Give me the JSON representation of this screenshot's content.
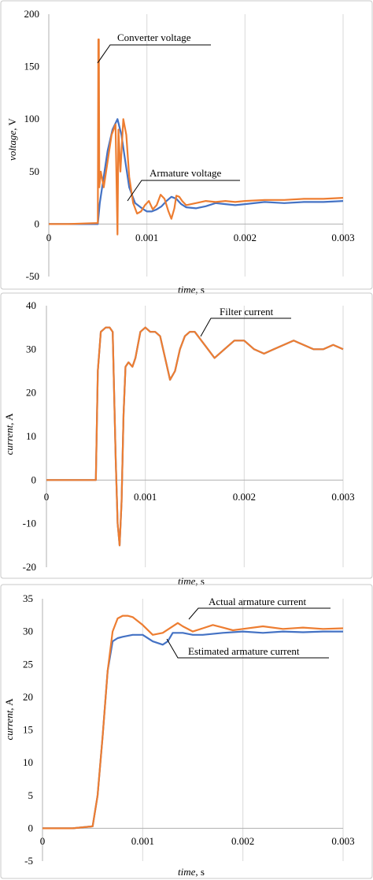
{
  "chart_data": [
    {
      "type": "line",
      "title": "",
      "xlabel": "time",
      "xunit": ", s",
      "ylabel": "voltage",
      "yunit": ", V",
      "xlim": [
        0,
        0.003
      ],
      "ylim": [
        -50,
        200
      ],
      "xticks": [
        0,
        0.001,
        0.002,
        0.003
      ],
      "xtick_labels": [
        "0",
        "0.001",
        "0.002",
        "0.003"
      ],
      "yticks": [
        -50,
        0,
        50,
        100,
        150,
        200
      ],
      "ytick_labels": [
        "-50",
        "0",
        "50",
        "100",
        "150",
        "200"
      ],
      "grid": "vertical",
      "series": [
        {
          "color": "#4472C4",
          "x": [
            0,
            0.0002,
            0.0005,
            0.00052,
            0.0006,
            0.00065,
            0.0007,
            0.00074,
            0.00078,
            0.00082,
            0.00088,
            0.00095,
            0.001,
            0.00105,
            0.0011,
            0.00115,
            0.0012,
            0.00125,
            0.0013,
            0.00135,
            0.0014,
            0.0015,
            0.0016,
            0.0017,
            0.0018,
            0.0019,
            0.002,
            0.0022,
            0.0024,
            0.0026,
            0.0028,
            0.003
          ],
          "y": [
            0,
            0,
            0,
            20,
            70,
            90,
            100,
            85,
            60,
            35,
            20,
            15,
            12,
            12,
            14,
            17,
            22,
            26,
            24,
            19,
            16,
            15,
            17,
            20,
            19,
            18,
            19,
            21,
            20,
            21,
            21,
            22
          ]
        },
        {
          "color": "#ED7D31",
          "x": [
            0,
            0.0002,
            0.0005,
            0.000505,
            0.00051,
            0.000515,
            0.00053,
            0.00056,
            0.0006,
            0.00064,
            0.00068,
            0.0007,
            0.00071,
            0.00073,
            0.00076,
            0.00079,
            0.00082,
            0.00086,
            0.0009,
            0.00094,
            0.00098,
            0.00102,
            0.00106,
            0.0011,
            0.00114,
            0.00118,
            0.00122,
            0.00125,
            0.00128,
            0.0013,
            0.00133,
            0.00136,
            0.0014,
            0.0015,
            0.0016,
            0.0017,
            0.0018,
            0.0019,
            0.002,
            0.0022,
            0.0024,
            0.0026,
            0.0028,
            0.003
          ],
          "y": [
            0,
            0,
            1,
            176,
            176,
            35,
            50,
            35,
            60,
            85,
            95,
            -10,
            90,
            50,
            100,
            85,
            45,
            20,
            10,
            12,
            18,
            22,
            14,
            18,
            28,
            24,
            12,
            5,
            15,
            27,
            26,
            22,
            18,
            20,
            22,
            21,
            22,
            21,
            22,
            23,
            23,
            24,
            24,
            25
          ]
        }
      ],
      "annotations": [
        {
          "text": "Converter voltage"
        },
        {
          "text": "Armature voltage"
        }
      ]
    },
    {
      "type": "line",
      "title": "",
      "xlabel": "time",
      "xunit": ", s",
      "ylabel": "current",
      "yunit": ", A",
      "xlim": [
        0,
        0.003
      ],
      "ylim": [
        -20,
        40
      ],
      "xticks": [
        0,
        0.001,
        0.002,
        0.003
      ],
      "xtick_labels": [
        "0",
        "0.001",
        "0.002",
        "0.003"
      ],
      "yticks": [
        -20,
        -10,
        0,
        10,
        20,
        30,
        40
      ],
      "ytick_labels": [
        "-20",
        "-10",
        "0",
        "10",
        "20",
        "30",
        "40"
      ],
      "grid": "vertical",
      "series": [
        {
          "color": "#4472C4",
          "x": [
            0,
            0.0003,
            0.0005,
            0.00052,
            0.00055,
            0.0006,
            0.00064,
            0.00067,
            0.0007,
            0.00072,
            0.00074,
            0.00076,
            0.00078,
            0.0008,
            0.00083,
            0.00087,
            0.0009,
            0.00095,
            0.001,
            0.00105,
            0.0011,
            0.00115,
            0.0012,
            0.00125,
            0.0013,
            0.00135,
            0.0014,
            0.00145,
            0.0015,
            0.0016,
            0.0017,
            0.0018,
            0.0019,
            0.002,
            0.0021,
            0.0022,
            0.0023,
            0.0024,
            0.0025,
            0.0026,
            0.0027,
            0.0028,
            0.0029,
            0.003
          ],
          "y": [
            0,
            0,
            0,
            25,
            34,
            35,
            35,
            34,
            5,
            -10,
            -15,
            -5,
            15,
            26,
            27,
            26,
            28,
            34,
            35,
            34,
            34,
            33,
            28,
            23,
            25,
            30,
            33,
            34,
            34,
            31,
            28,
            30,
            32,
            32,
            30,
            29,
            30,
            31,
            32,
            31,
            30,
            30,
            31,
            30
          ]
        },
        {
          "color": "#ED7D31",
          "x": [
            0,
            0.0003,
            0.0005,
            0.00052,
            0.00055,
            0.0006,
            0.00064,
            0.00067,
            0.0007,
            0.00072,
            0.00074,
            0.00076,
            0.00078,
            0.0008,
            0.00083,
            0.00087,
            0.0009,
            0.00095,
            0.001,
            0.00105,
            0.0011,
            0.00115,
            0.0012,
            0.00125,
            0.0013,
            0.00135,
            0.0014,
            0.00145,
            0.0015,
            0.0016,
            0.0017,
            0.0018,
            0.0019,
            0.002,
            0.0021,
            0.0022,
            0.0023,
            0.0024,
            0.0025,
            0.0026,
            0.0027,
            0.0028,
            0.0029,
            0.003
          ],
          "y": [
            0,
            0,
            0,
            25,
            34,
            35,
            35,
            34,
            5,
            -10,
            -15,
            -5,
            15,
            26,
            27,
            26,
            28,
            34,
            35,
            34,
            34,
            33,
            28,
            23,
            25,
            30,
            33,
            34,
            34,
            31,
            28,
            30,
            32,
            32,
            30,
            29,
            30,
            31,
            32,
            31,
            30,
            30,
            31,
            30
          ]
        }
      ],
      "annotations": [
        {
          "text": "Filter current"
        }
      ]
    },
    {
      "type": "line",
      "title": "",
      "xlabel": "time",
      "xunit": ", s",
      "ylabel": "current",
      "yunit": ", A",
      "xlim": [
        0,
        0.003
      ],
      "ylim": [
        -5,
        35
      ],
      "xticks": [
        0,
        0.001,
        0.002,
        0.003
      ],
      "xtick_labels": [
        "0",
        "0.001",
        "0.002",
        "0.003"
      ],
      "yticks": [
        -5,
        0,
        5,
        10,
        15,
        20,
        25,
        30,
        35
      ],
      "ytick_labels": [
        "-5",
        "0",
        "5",
        "10",
        "15",
        "20",
        "25",
        "30",
        "35"
      ],
      "grid": "vertical",
      "series": [
        {
          "color": "#4472C4",
          "x": [
            0,
            0.0003,
            0.0005,
            0.00055,
            0.0006,
            0.00065,
            0.0007,
            0.00075,
            0.0008,
            0.0009,
            0.001,
            0.0011,
            0.0012,
            0.00125,
            0.0013,
            0.0014,
            0.0015,
            0.0016,
            0.0018,
            0.002,
            0.0022,
            0.0024,
            0.0026,
            0.0028,
            0.003
          ],
          "y": [
            0,
            0,
            0.3,
            5,
            14,
            24,
            28.5,
            29,
            29.2,
            29.5,
            29.5,
            28.5,
            28,
            28.5,
            29.8,
            29.8,
            29.5,
            29.5,
            29.8,
            30,
            29.8,
            30,
            29.9,
            30,
            30
          ]
        },
        {
          "color": "#ED7D31",
          "x": [
            0,
            0.0003,
            0.0005,
            0.00055,
            0.0006,
            0.00065,
            0.0007,
            0.00075,
            0.0008,
            0.00085,
            0.0009,
            0.001,
            0.0011,
            0.0012,
            0.00135,
            0.0014,
            0.0015,
            0.0016,
            0.0017,
            0.0018,
            0.0019,
            0.002,
            0.0022,
            0.0024,
            0.0026,
            0.0028,
            0.003
          ],
          "y": [
            0,
            0,
            0.3,
            5,
            14,
            24,
            30,
            32,
            32.4,
            32.4,
            32.2,
            31,
            29.5,
            29.8,
            31.3,
            30.8,
            30,
            30.5,
            31,
            30.6,
            30.2,
            30.4,
            30.8,
            30.4,
            30.6,
            30.4,
            30.5
          ]
        }
      ],
      "annotations": [
        {
          "text": "Actual armature current"
        },
        {
          "text": "Estimated armature current"
        }
      ]
    }
  ]
}
